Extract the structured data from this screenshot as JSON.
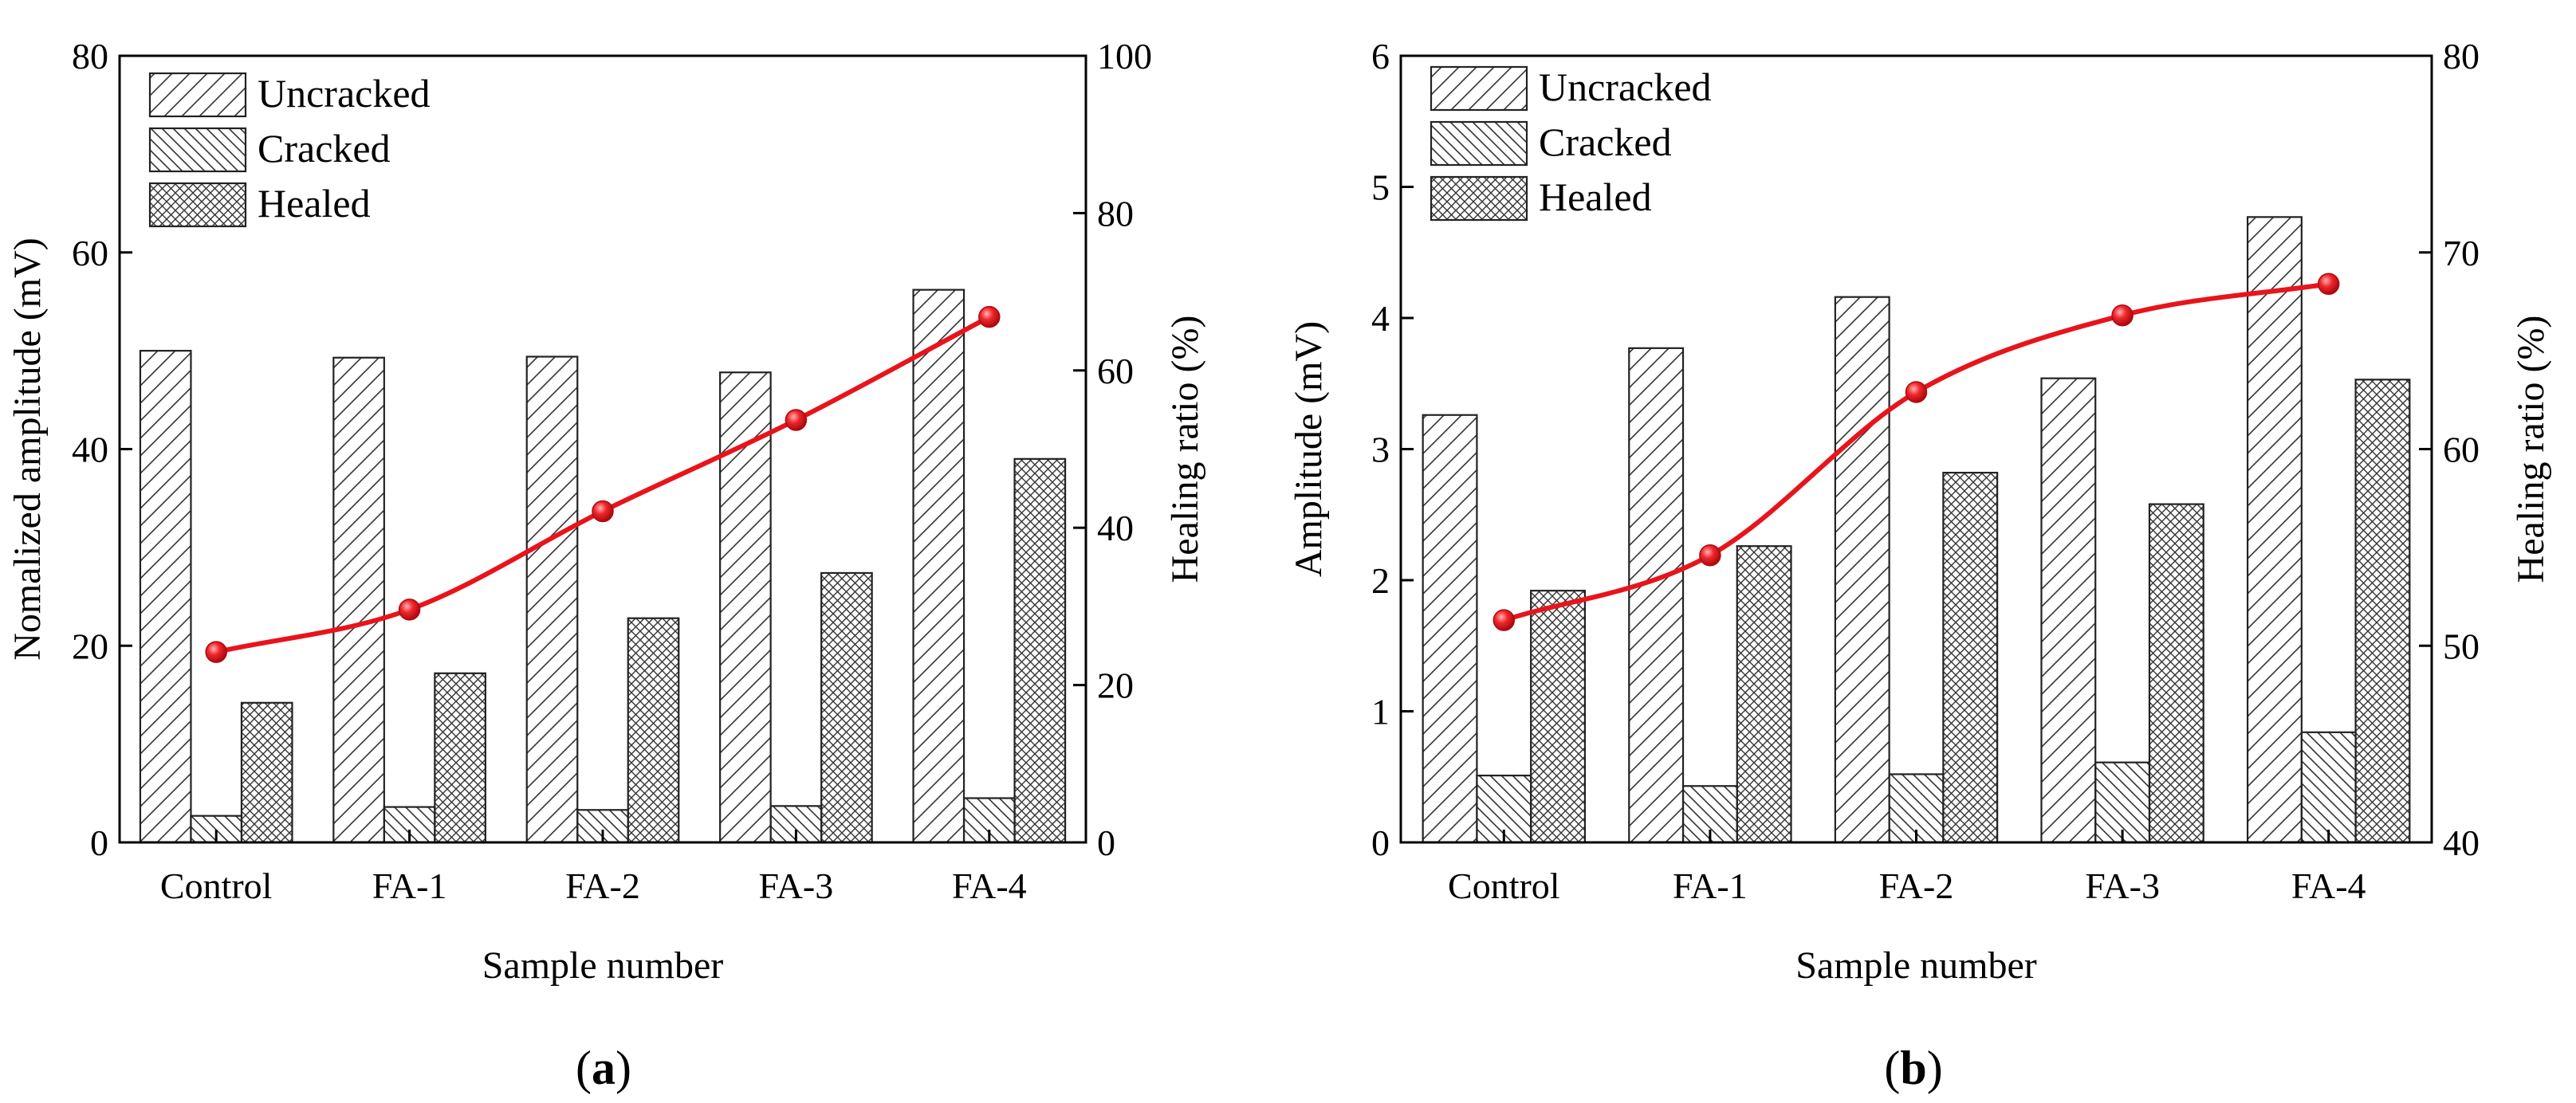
{
  "chart_data": [
    {
      "type": "bar",
      "panel_label": {
        "open": "(",
        "letter": "a",
        "close": ")"
      },
      "categories": [
        "Control",
        "FA-1",
        "FA-2",
        "FA-3",
        "FA-4"
      ],
      "series": [
        {
          "name": "Uncracked",
          "values": [
            50.0,
            49.3,
            49.4,
            47.8,
            56.2
          ],
          "pattern": "diag-right"
        },
        {
          "name": "Cracked",
          "values": [
            2.7,
            3.6,
            3.3,
            3.7,
            4.5
          ],
          "pattern": "diag-left"
        },
        {
          "name": "Healed",
          "values": [
            14.2,
            17.2,
            22.8,
            27.4,
            39.0
          ],
          "pattern": "crosshatch"
        }
      ],
      "line_series": {
        "name": "Healing ratio",
        "axis": "right",
        "values": [
          24.2,
          29.6,
          42.1,
          53.7,
          66.8
        ],
        "color": "#e8141c"
      },
      "xlabel": "Sample number",
      "ylabel": "Nomalized amplitude (mV)",
      "y2label": "Healing ratio (%)",
      "ylim": [
        0,
        80
      ],
      "y2lim": [
        0,
        100
      ],
      "yticks": [
        0,
        20,
        40,
        60,
        80
      ],
      "y2ticks": [
        0,
        20,
        40,
        60,
        80,
        100
      ],
      "legend": "top-left"
    },
    {
      "type": "bar",
      "panel_label": {
        "open": "(",
        "letter": "b",
        "close": ")"
      },
      "categories": [
        "Control",
        "FA-1",
        "FA-2",
        "FA-3",
        "FA-4"
      ],
      "series": [
        {
          "name": "Uncracked",
          "values": [
            3.26,
            3.77,
            4.16,
            3.54,
            4.77
          ],
          "pattern": "diag-right"
        },
        {
          "name": "Cracked",
          "values": [
            0.51,
            0.43,
            0.52,
            0.61,
            0.84
          ],
          "pattern": "diag-left"
        },
        {
          "name": "Healed",
          "values": [
            1.92,
            2.26,
            2.82,
            2.58,
            3.53
          ],
          "pattern": "crosshatch"
        }
      ],
      "line_series": {
        "name": "Healing ratio",
        "axis": "right",
        "values": [
          51.3,
          54.6,
          62.9,
          66.8,
          68.4
        ],
        "color": "#e8141c"
      },
      "xlabel": "Sample number",
      "ylabel": "Amplitude (mV)",
      "y2label": "Healing ratio (%)",
      "ylim": [
        0,
        6
      ],
      "y2lim": [
        40,
        80
      ],
      "yticks": [
        0,
        1,
        2,
        3,
        4,
        5,
        6
      ],
      "y2ticks": [
        40,
        50,
        60,
        70,
        80
      ],
      "legend": "top-left"
    }
  ]
}
